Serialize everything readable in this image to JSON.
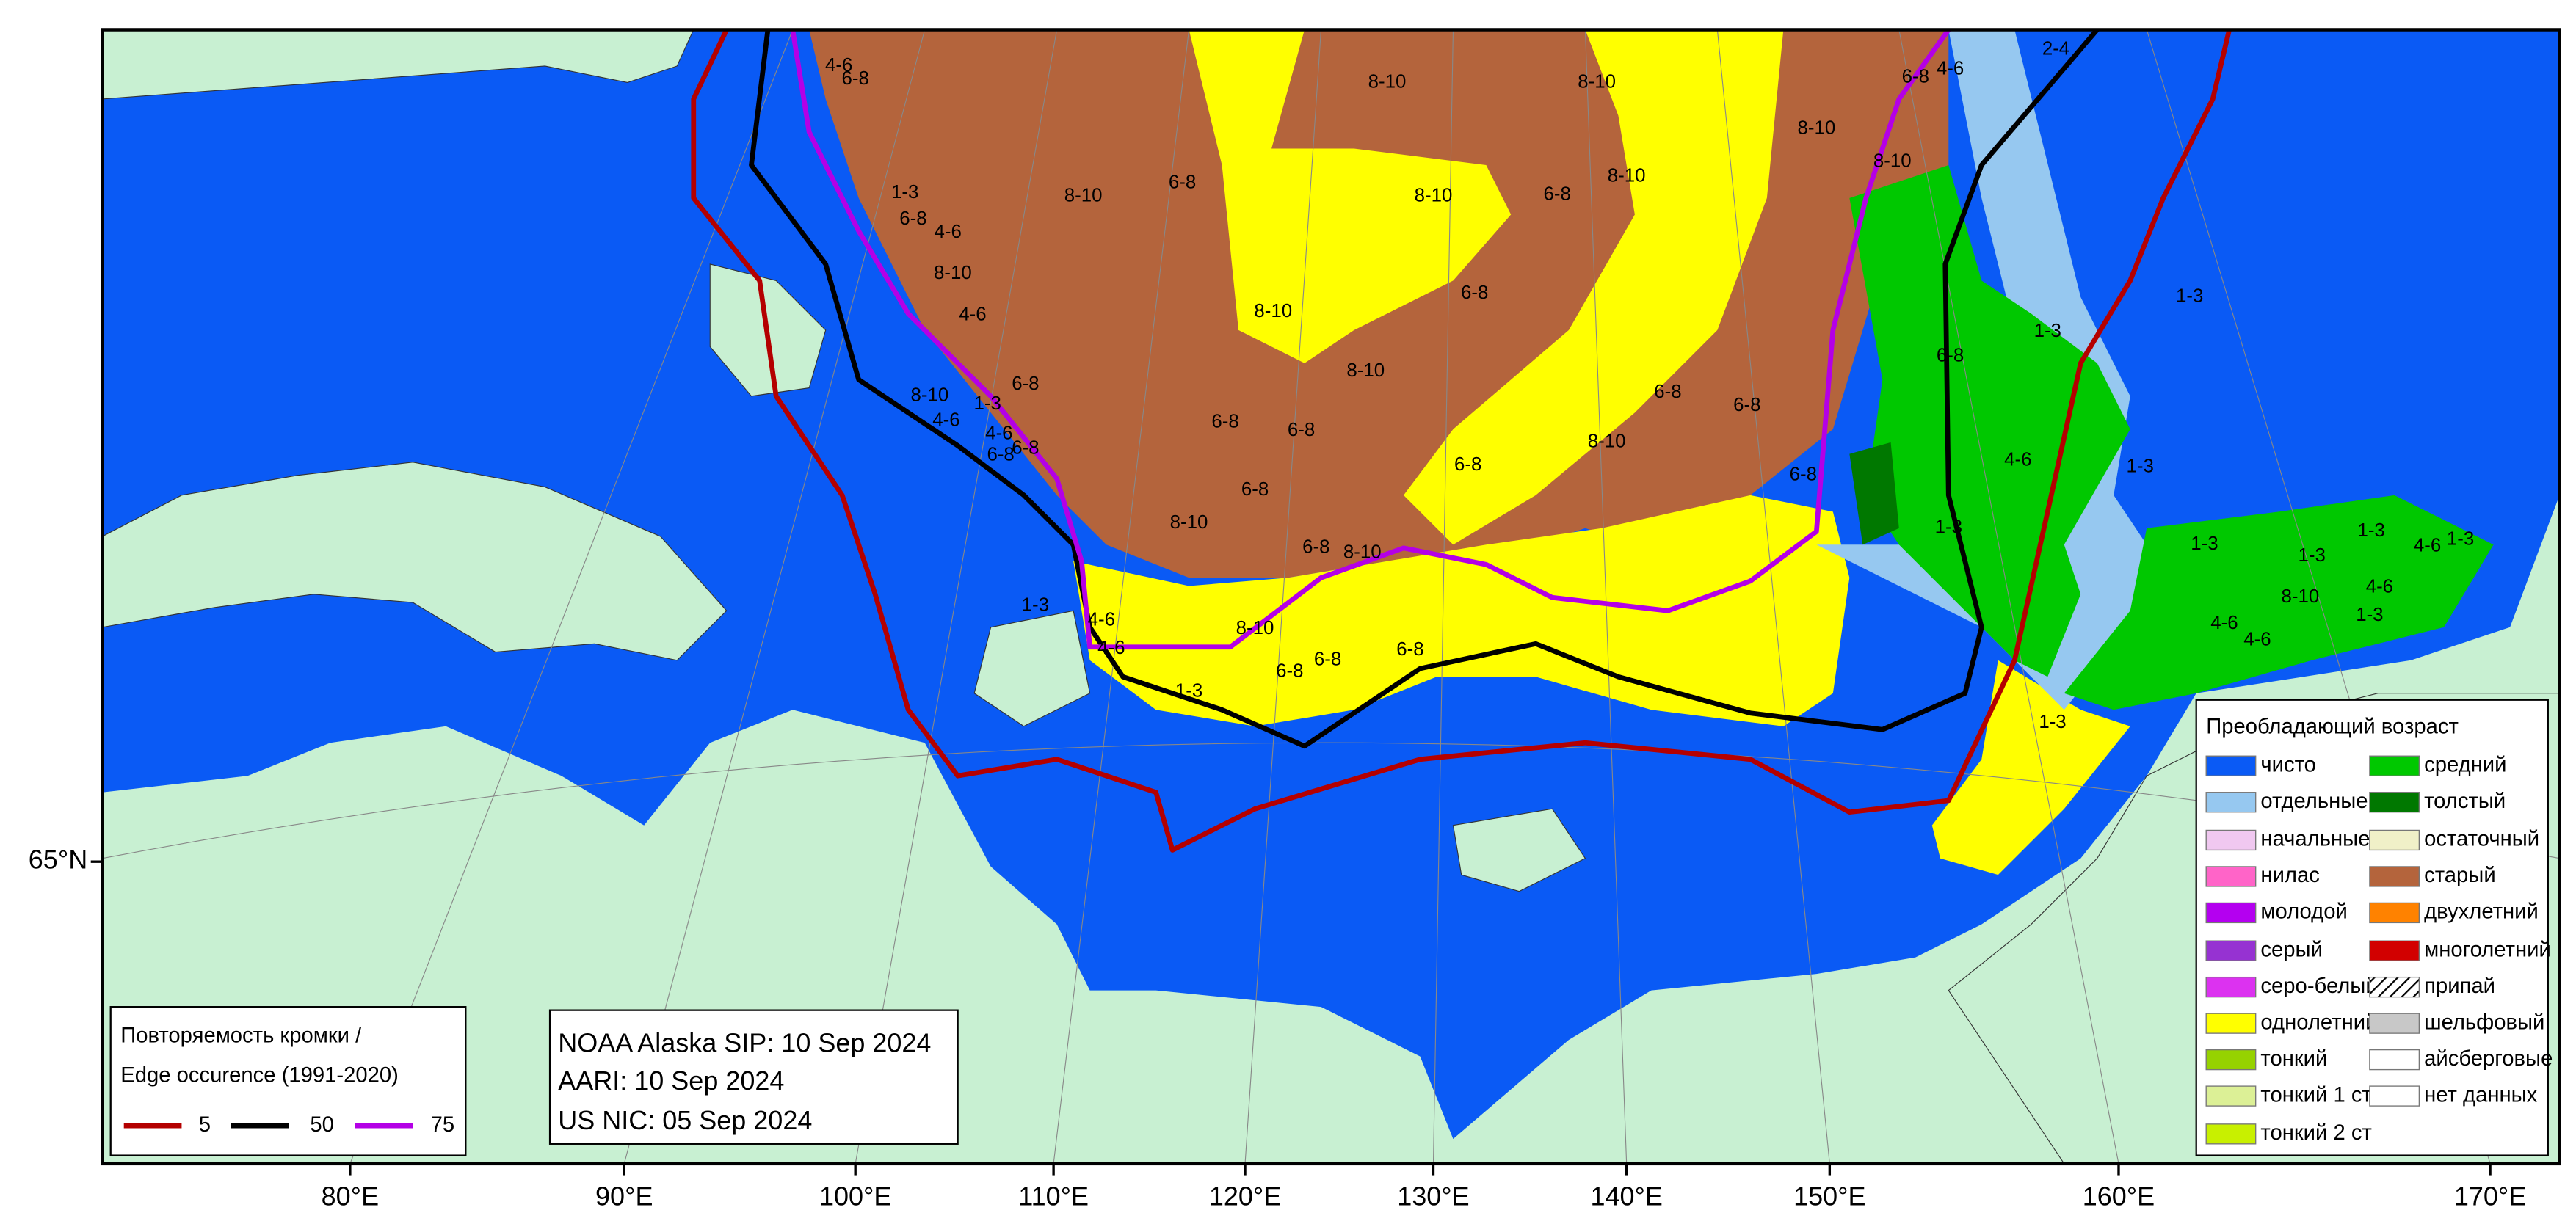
{
  "map": {
    "lon_labels": [
      "80°E",
      "90°E",
      "100°E",
      "110°E",
      "120°E",
      "130°E",
      "140°E",
      "150°E",
      "160°E",
      "170°E"
    ],
    "lat_labels": [
      "65°N"
    ],
    "ice_labels": [
      "4-6",
      "6-8",
      "8-10",
      "8-10",
      "6-8",
      "4-6",
      "2-4",
      "8-10",
      "1-3",
      "8-10",
      "6-8",
      "8-10",
      "6-8",
      "8-10",
      "8-10",
      "6-8",
      "4-6",
      "8-10",
      "8-10",
      "6-8",
      "1-3",
      "1-3",
      "4-6",
      "8-10",
      "6-8",
      "6-8",
      "6-8",
      "6-8",
      "8-10",
      "6-8",
      "6-8",
      "4-6",
      "8-10",
      "6-8",
      "1-3",
      "6-8",
      "6-8",
      "8-10",
      "1-3",
      "1-3",
      "1-3",
      "4-6",
      "1-3",
      "1-3",
      "6-8",
      "8-10",
      "8-10",
      "4-6",
      "4-6",
      "4-6",
      "1-3",
      "8-10",
      "4-6",
      "4-6",
      "1-3",
      "6-8",
      "6-8",
      "6-8",
      "1-3",
      "1-3",
      "4-6",
      "6-8",
      "6-8",
      "1-3",
      "4-6"
    ]
  },
  "edge_legend": {
    "title_lines": [
      "Повторяемость кромки /",
      "Edge occurence (1991-2020)"
    ],
    "items": [
      {
        "label": "5",
        "color": "#b40000"
      },
      {
        "label": "50",
        "color": "#000000"
      },
      {
        "label": "75",
        "color": "#b400e6"
      }
    ]
  },
  "info_box": {
    "lines": [
      "NOAA Alaska SIP: 10 Sep 2024",
      "AARI: 10 Sep 2024",
      "US NIC: 05 Sep 2024"
    ]
  },
  "age_legend": {
    "title": "Преобладающий возраст",
    "items": [
      {
        "label": "чисто",
        "color": "#0a5af5"
      },
      {
        "label": "отдельные",
        "color": "#96c8f0"
      },
      {
        "label": "начальные",
        "color": "#f0c8f0"
      },
      {
        "label": "нилас",
        "color": "#ff64c8"
      },
      {
        "label": "молодой",
        "color": "#b400f0"
      },
      {
        "label": "серый",
        "color": "#9632d2"
      },
      {
        "label": "серо-белый",
        "color": "#dc32f0"
      },
      {
        "label": "однолетний",
        "color": "#ffff00"
      },
      {
        "label": "тонкий",
        "color": "#96d200"
      },
      {
        "label": "тонкий 1 ст",
        "color": "#dcf096"
      },
      {
        "label": "тонкий 2 ст",
        "color": "#c8f000"
      },
      {
        "label": "средний",
        "color": "#00c800"
      },
      {
        "label": "толстый",
        "color": "#007800"
      },
      {
        "label": "остаточный",
        "color": "#f0f0c8"
      },
      {
        "label": "старый",
        "color": "#b4643c"
      },
      {
        "label": "двухлетний",
        "color": "#ff8200"
      },
      {
        "label": "многолетний",
        "color": "#d20000"
      },
      {
        "label": "припай",
        "color": "#ffffff",
        "hatch": true
      },
      {
        "label": "шельфовый",
        "color": "#c8c8c8"
      },
      {
        "label": "айсберговые",
        "color": "#ffffff"
      },
      {
        "label": "нет данных",
        "color": "#ffffff"
      }
    ]
  }
}
